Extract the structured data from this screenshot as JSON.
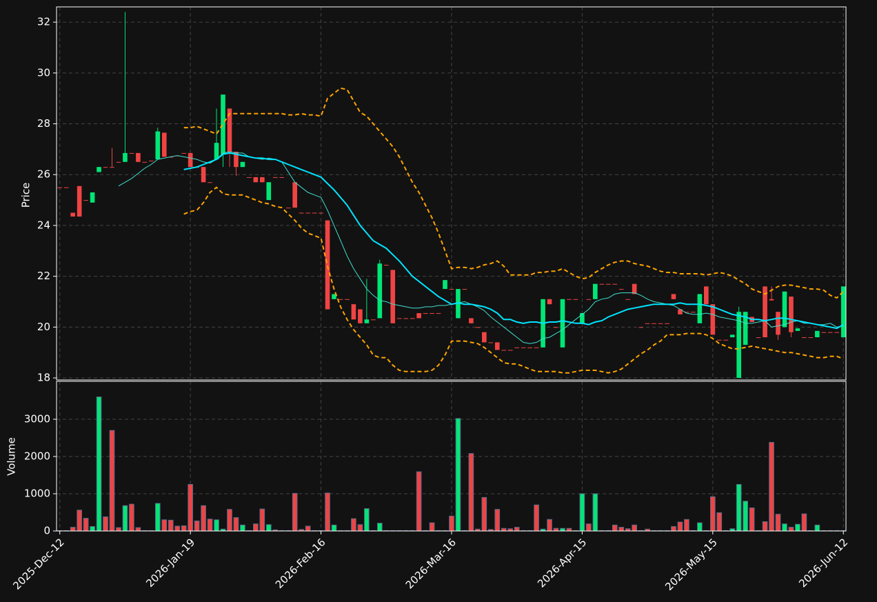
{
  "chart_data": {
    "type": "candlestick",
    "ylabel": "Price",
    "volume_ylabel": "Volume",
    "grid": true,
    "up_color": "#00e676",
    "down_color": "#ef4444",
    "volume_edge_color": "#5a6a8a",
    "xlim": [
      -0.5,
      120.4
    ],
    "xticks": [
      {
        "value": 0,
        "label": "2025-Dec-12"
      },
      {
        "value": 20,
        "label": "2026-Jan-19"
      },
      {
        "value": 40,
        "label": "2026-Feb-16"
      },
      {
        "value": 60,
        "label": "2026-Mar-16"
      },
      {
        "value": 80,
        "label": "2026-Apr-15"
      },
      {
        "value": 100,
        "label": "2026-May-15"
      },
      {
        "value": 120,
        "label": "2026-Jun-12"
      }
    ],
    "ylim": [
      17.92,
      32.6
    ],
    "yticks": [
      18,
      20,
      22,
      24,
      26,
      28,
      30,
      32
    ],
    "volume_ylim": [
      0,
      4018
    ],
    "volume_yticks": [
      0,
      1000,
      2000,
      3000
    ],
    "open": [
      25.5,
      25.5,
      24.5,
      25.55,
      25.0,
      24.9,
      26.1,
      26.3,
      26.3,
      26.5,
      26.5,
      26.85,
      26.85,
      26.5,
      26.55,
      26.6,
      27.65,
      26.7,
      26.75,
      26.85,
      26.85,
      26.3,
      26.3,
      25.7,
      26.6,
      26.8,
      28.6,
      26.9,
      26.3,
      25.9,
      25.9,
      25.9,
      25.0,
      25.9,
      25.9,
      24.7,
      25.7,
      24.5,
      24.5,
      24.5,
      24.5,
      24.2,
      21.1,
      21.1,
      21.1,
      20.9,
      20.7,
      20.15,
      20.3,
      20.35,
      22.45,
      22.25,
      20.35,
      20.35,
      20.35,
      20.55,
      20.55,
      20.55,
      20.55,
      21.5,
      21.5,
      20.35,
      21.5,
      20.35,
      20.0,
      19.8,
      19.4,
      19.4,
      19.1,
      19.1,
      19.2,
      19.2,
      19.2,
      19.2,
      19.2,
      21.1,
      20.0,
      19.2,
      21.1,
      21.1,
      20.15,
      21.1,
      21.1,
      21.7,
      21.7,
      21.7,
      21.5,
      21.1,
      21.7,
      20.0,
      20.15,
      20.15,
      20.15,
      20.15,
      21.3,
      20.7,
      20.6,
      20.6,
      20.15,
      21.6,
      20.9,
      19.5,
      19.5,
      19.6,
      18.0,
      19.3,
      20.4,
      19.6,
      21.6,
      21.1,
      20.6,
      20.0,
      21.2,
      19.85,
      19.6,
      19.6,
      19.6,
      19.8,
      19.8,
      19.8,
      19.6
    ],
    "high": [
      25.5,
      25.5,
      24.5,
      25.55,
      25.0,
      25.3,
      26.3,
      26.3,
      27.05,
      26.5,
      32.4,
      26.85,
      26.85,
      26.5,
      26.55,
      27.85,
      27.65,
      26.7,
      26.75,
      26.85,
      26.85,
      26.3,
      26.3,
      25.7,
      28.6,
      29.15,
      28.6,
      26.9,
      26.5,
      25.9,
      25.9,
      25.9,
      25.7,
      25.9,
      25.9,
      24.7,
      25.7,
      24.5,
      24.5,
      24.5,
      24.5,
      24.2,
      21.3,
      21.1,
      21.1,
      20.9,
      20.7,
      21.9,
      20.3,
      22.65,
      22.45,
      22.25,
      20.35,
      20.35,
      20.35,
      20.55,
      20.55,
      20.55,
      20.55,
      21.85,
      21.5,
      21.5,
      21.5,
      20.35,
      20.0,
      19.8,
      19.4,
      19.4,
      19.1,
      19.1,
      19.2,
      19.2,
      19.2,
      19.2,
      21.1,
      21.1,
      20.0,
      21.1,
      21.1,
      21.1,
      20.55,
      21.1,
      21.7,
      21.7,
      21.7,
      21.7,
      21.5,
      21.1,
      21.7,
      20.0,
      20.15,
      20.15,
      20.15,
      20.15,
      21.3,
      20.7,
      20.6,
      20.6,
      21.3,
      21.6,
      20.9,
      19.5,
      19.5,
      19.7,
      20.8,
      20.6,
      20.4,
      19.6,
      21.6,
      21.6,
      20.6,
      21.4,
      21.2,
      19.95,
      19.6,
      19.6,
      19.85,
      19.8,
      19.8,
      19.8,
      21.6
    ],
    "low": [
      25.5,
      25.5,
      24.35,
      24.35,
      25.0,
      24.9,
      26.1,
      26.3,
      26.3,
      26.5,
      26.5,
      26.85,
      26.5,
      26.5,
      26.55,
      26.6,
      26.7,
      26.7,
      26.75,
      26.85,
      26.3,
      26.3,
      25.7,
      25.7,
      26.6,
      26.3,
      26.3,
      25.95,
      26.3,
      25.9,
      25.7,
      25.7,
      25.0,
      25.9,
      25.9,
      24.7,
      24.7,
      24.5,
      24.5,
      24.5,
      24.5,
      20.7,
      21.1,
      21.1,
      21.1,
      20.3,
      20.15,
      20.15,
      20.3,
      20.35,
      22.45,
      20.15,
      20.35,
      20.35,
      20.35,
      20.35,
      20.55,
      20.55,
      20.55,
      21.5,
      21.5,
      20.35,
      21.5,
      20.15,
      20.0,
      19.4,
      19.4,
      19.1,
      19.1,
      19.1,
      19.2,
      19.2,
      19.2,
      19.2,
      19.2,
      20.9,
      20.0,
      19.2,
      21.1,
      21.1,
      20.15,
      21.1,
      21.1,
      21.7,
      21.7,
      21.7,
      21.5,
      21.1,
      21.3,
      20.0,
      20.15,
      20.15,
      20.15,
      20.15,
      21.1,
      20.5,
      20.6,
      20.6,
      20.15,
      20.9,
      19.7,
      19.5,
      19.5,
      19.6,
      18.0,
      19.3,
      20.2,
      19.6,
      19.6,
      21.05,
      19.5,
      20.0,
      19.6,
      19.85,
      19.6,
      19.6,
      19.6,
      19.8,
      19.8,
      19.8,
      19.6
    ],
    "close": [
      25.5,
      25.5,
      24.35,
      24.35,
      25.0,
      25.3,
      26.3,
      26.3,
      26.3,
      26.5,
      26.85,
      26.85,
      26.5,
      26.5,
      26.55,
      27.7,
      26.7,
      26.7,
      26.75,
      26.85,
      26.3,
      26.3,
      25.7,
      25.7,
      27.25,
      29.15,
      26.9,
      26.3,
      26.5,
      25.9,
      25.7,
      25.7,
      25.7,
      25.9,
      25.9,
      24.7,
      24.7,
      24.5,
      24.5,
      24.5,
      24.5,
      20.7,
      21.3,
      21.1,
      21.1,
      20.3,
      20.15,
      20.3,
      20.3,
      22.5,
      22.45,
      20.15,
      20.35,
      20.35,
      20.35,
      20.35,
      20.55,
      20.55,
      20.55,
      21.85,
      21.5,
      21.5,
      21.5,
      20.15,
      20.0,
      19.4,
      19.4,
      19.1,
      19.1,
      19.1,
      19.2,
      19.2,
      19.2,
      19.2,
      21.1,
      20.9,
      20.0,
      21.1,
      21.1,
      21.1,
      20.55,
      21.1,
      21.7,
      21.7,
      21.7,
      21.7,
      21.5,
      21.1,
      21.3,
      20.0,
      20.15,
      20.15,
      20.15,
      20.15,
      21.1,
      20.5,
      20.6,
      20.6,
      21.3,
      20.9,
      19.7,
      19.5,
      19.5,
      19.7,
      20.6,
      20.6,
      20.2,
      19.6,
      19.6,
      21.05,
      19.7,
      21.4,
      19.8,
      19.95,
      19.6,
      19.6,
      19.85,
      19.8,
      19.8,
      19.8,
      21.6
    ],
    "volume": [
      10,
      10,
      100,
      560,
      340,
      120,
      3600,
      380,
      2700,
      90,
      680,
      720,
      90,
      10,
      10,
      740,
      300,
      290,
      130,
      140,
      1250,
      270,
      680,
      320,
      300,
      50,
      580,
      360,
      160,
      10,
      190,
      590,
      170,
      30,
      10,
      10,
      1010,
      40,
      130,
      10,
      10,
      1020,
      160,
      10,
      10,
      330,
      170,
      600,
      10,
      210,
      10,
      10,
      10,
      10,
      10,
      1590,
      10,
      220,
      10,
      10,
      400,
      3020,
      10,
      2080,
      50,
      900,
      40,
      580,
      70,
      60,
      100,
      10,
      10,
      700,
      50,
      310,
      70,
      70,
      70,
      10,
      1000,
      190,
      1000,
      10,
      10,
      160,
      100,
      60,
      160,
      10,
      50,
      10,
      10,
      10,
      120,
      240,
      310,
      10,
      220,
      10,
      920,
      490,
      10,
      60,
      1250,
      800,
      620,
      10,
      250,
      2380,
      450,
      190,
      100,
      180,
      460,
      10,
      160,
      10,
      10,
      10,
      10
    ],
    "lines": [
      {
        "color": "#40e0d0",
        "width": 1,
        "dash": false,
        "values": [
          null,
          null,
          null,
          null,
          null,
          null,
          null,
          null,
          null,
          25.55,
          25.7,
          25.85,
          26.05,
          26.25,
          26.4,
          26.6,
          26.65,
          26.7,
          26.75,
          26.7,
          26.65,
          26.6,
          26.5,
          26.45,
          26.6,
          26.85,
          26.9,
          26.85,
          26.85,
          26.7,
          26.65,
          26.6,
          26.65,
          26.6,
          26.5,
          26.1,
          25.7,
          25.5,
          25.3,
          25.2,
          25.1,
          24.6,
          24.0,
          23.4,
          22.8,
          22.3,
          21.9,
          21.5,
          21.25,
          21.05,
          21.0,
          20.9,
          20.85,
          20.8,
          20.75,
          20.75,
          20.8,
          20.8,
          20.85,
          20.85,
          20.9,
          20.95,
          21.0,
          20.9,
          20.8,
          20.65,
          20.4,
          20.2,
          20.0,
          19.8,
          19.6,
          19.4,
          19.35,
          19.4,
          19.55,
          19.6,
          19.75,
          19.9,
          20.1,
          20.3,
          20.5,
          20.7,
          21.0,
          21.1,
          21.15,
          21.3,
          21.35,
          21.35,
          21.35,
          21.25,
          21.1,
          21.0,
          20.95,
          20.9,
          20.85,
          20.7,
          20.55,
          20.5,
          20.5,
          20.55,
          20.5,
          20.4,
          20.35,
          20.3,
          20.25,
          20.15,
          20.15,
          20.2,
          20.25,
          20.0,
          20.05,
          20.1,
          20.2,
          20.25,
          20.15,
          20.15,
          20.1,
          20.1,
          20.15,
          20.0,
          20.05
        ]
      },
      {
        "color": "#00e5ff",
        "width": 2,
        "dash": false,
        "values": [
          null,
          null,
          null,
          null,
          null,
          null,
          null,
          null,
          null,
          null,
          null,
          null,
          null,
          null,
          null,
          null,
          null,
          null,
          null,
          26.2,
          26.25,
          26.3,
          26.4,
          26.5,
          26.6,
          26.8,
          26.85,
          26.8,
          26.75,
          26.7,
          26.65,
          26.65,
          26.6,
          26.6,
          26.5,
          26.4,
          26.3,
          26.2,
          26.1,
          26.0,
          25.9,
          25.65,
          25.4,
          25.1,
          24.8,
          24.4,
          24.0,
          23.7,
          23.4,
          23.25,
          23.1,
          22.85,
          22.6,
          22.3,
          22.0,
          21.8,
          21.6,
          21.4,
          21.2,
          21.05,
          20.9,
          20.95,
          20.9,
          20.9,
          20.85,
          20.8,
          20.7,
          20.55,
          20.3,
          20.3,
          20.2,
          20.15,
          20.2,
          20.2,
          20.15,
          20.2,
          20.2,
          20.25,
          20.2,
          20.15,
          20.15,
          20.1,
          20.2,
          20.25,
          20.4,
          20.5,
          20.6,
          20.7,
          20.75,
          20.8,
          20.85,
          20.9,
          20.9,
          20.9,
          20.9,
          20.95,
          20.9,
          20.9,
          20.9,
          20.85,
          20.8,
          20.7,
          20.6,
          20.5,
          20.45,
          20.4,
          20.3,
          20.3,
          20.25,
          20.3,
          20.35,
          20.35,
          20.3,
          20.25,
          20.2,
          20.15,
          20.1,
          20.05,
          20.0,
          19.95,
          20.1
        ]
      },
      {
        "color": "#ffa500",
        "width": 2,
        "dash": true,
        "values": [
          null,
          null,
          null,
          null,
          null,
          null,
          null,
          null,
          null,
          null,
          null,
          null,
          null,
          null,
          null,
          null,
          null,
          null,
          null,
          27.85,
          27.85,
          27.9,
          27.8,
          27.7,
          27.6,
          28.0,
          28.4,
          28.4,
          28.4,
          28.4,
          28.4,
          28.4,
          28.4,
          28.4,
          28.4,
          28.35,
          28.35,
          28.4,
          28.35,
          28.35,
          28.3,
          29.0,
          29.2,
          29.4,
          29.35,
          28.9,
          28.45,
          28.3,
          28.0,
          27.7,
          27.4,
          27.1,
          26.7,
          26.2,
          25.7,
          25.3,
          24.8,
          24.3,
          23.7,
          23.0,
          22.3,
          22.35,
          22.35,
          22.3,
          22.35,
          22.45,
          22.5,
          22.6,
          22.4,
          22.05,
          22.05,
          22.05,
          22.05,
          22.15,
          22.15,
          22.2,
          22.2,
          22.3,
          22.15,
          22.0,
          21.9,
          21.95,
          22.15,
          22.3,
          22.45,
          22.55,
          22.6,
          22.6,
          22.5,
          22.45,
          22.4,
          22.3,
          22.2,
          22.15,
          22.15,
          22.1,
          22.1,
          22.1,
          22.1,
          22.05,
          22.1,
          22.15,
          22.1,
          22.0,
          21.85,
          21.7,
          21.5,
          21.4,
          21.3,
          21.45,
          21.6,
          21.65,
          21.65,
          21.6,
          21.55,
          21.5,
          21.5,
          21.45,
          21.25,
          21.15,
          21.4
        ]
      },
      {
        "color": "#ffa500",
        "width": 2,
        "dash": true,
        "values": [
          null,
          null,
          null,
          null,
          null,
          null,
          null,
          null,
          null,
          null,
          null,
          null,
          null,
          null,
          null,
          null,
          null,
          null,
          null,
          24.45,
          24.55,
          24.6,
          24.9,
          25.3,
          25.5,
          25.25,
          25.2,
          25.2,
          25.2,
          25.1,
          25.0,
          24.9,
          24.85,
          24.75,
          24.7,
          24.45,
          24.2,
          23.9,
          23.7,
          23.6,
          23.5,
          22.4,
          21.5,
          20.8,
          20.3,
          19.9,
          19.6,
          19.3,
          18.9,
          18.8,
          18.8,
          18.5,
          18.3,
          18.25,
          18.25,
          18.25,
          18.25,
          18.3,
          18.5,
          18.9,
          19.45,
          19.45,
          19.45,
          19.4,
          19.35,
          19.2,
          19.0,
          18.8,
          18.6,
          18.55,
          18.55,
          18.45,
          18.35,
          18.25,
          18.25,
          18.25,
          18.25,
          18.2,
          18.2,
          18.25,
          18.3,
          18.3,
          18.3,
          18.25,
          18.2,
          18.25,
          18.35,
          18.55,
          18.75,
          18.95,
          19.1,
          19.3,
          19.45,
          19.7,
          19.7,
          19.7,
          19.75,
          19.75,
          19.75,
          19.7,
          19.55,
          19.35,
          19.25,
          19.15,
          19.15,
          19.2,
          19.25,
          19.2,
          19.15,
          19.1,
          19.05,
          19.0,
          19.0,
          18.95,
          18.9,
          18.85,
          18.8,
          18.8,
          18.85,
          18.85,
          18.75
        ]
      }
    ]
  }
}
